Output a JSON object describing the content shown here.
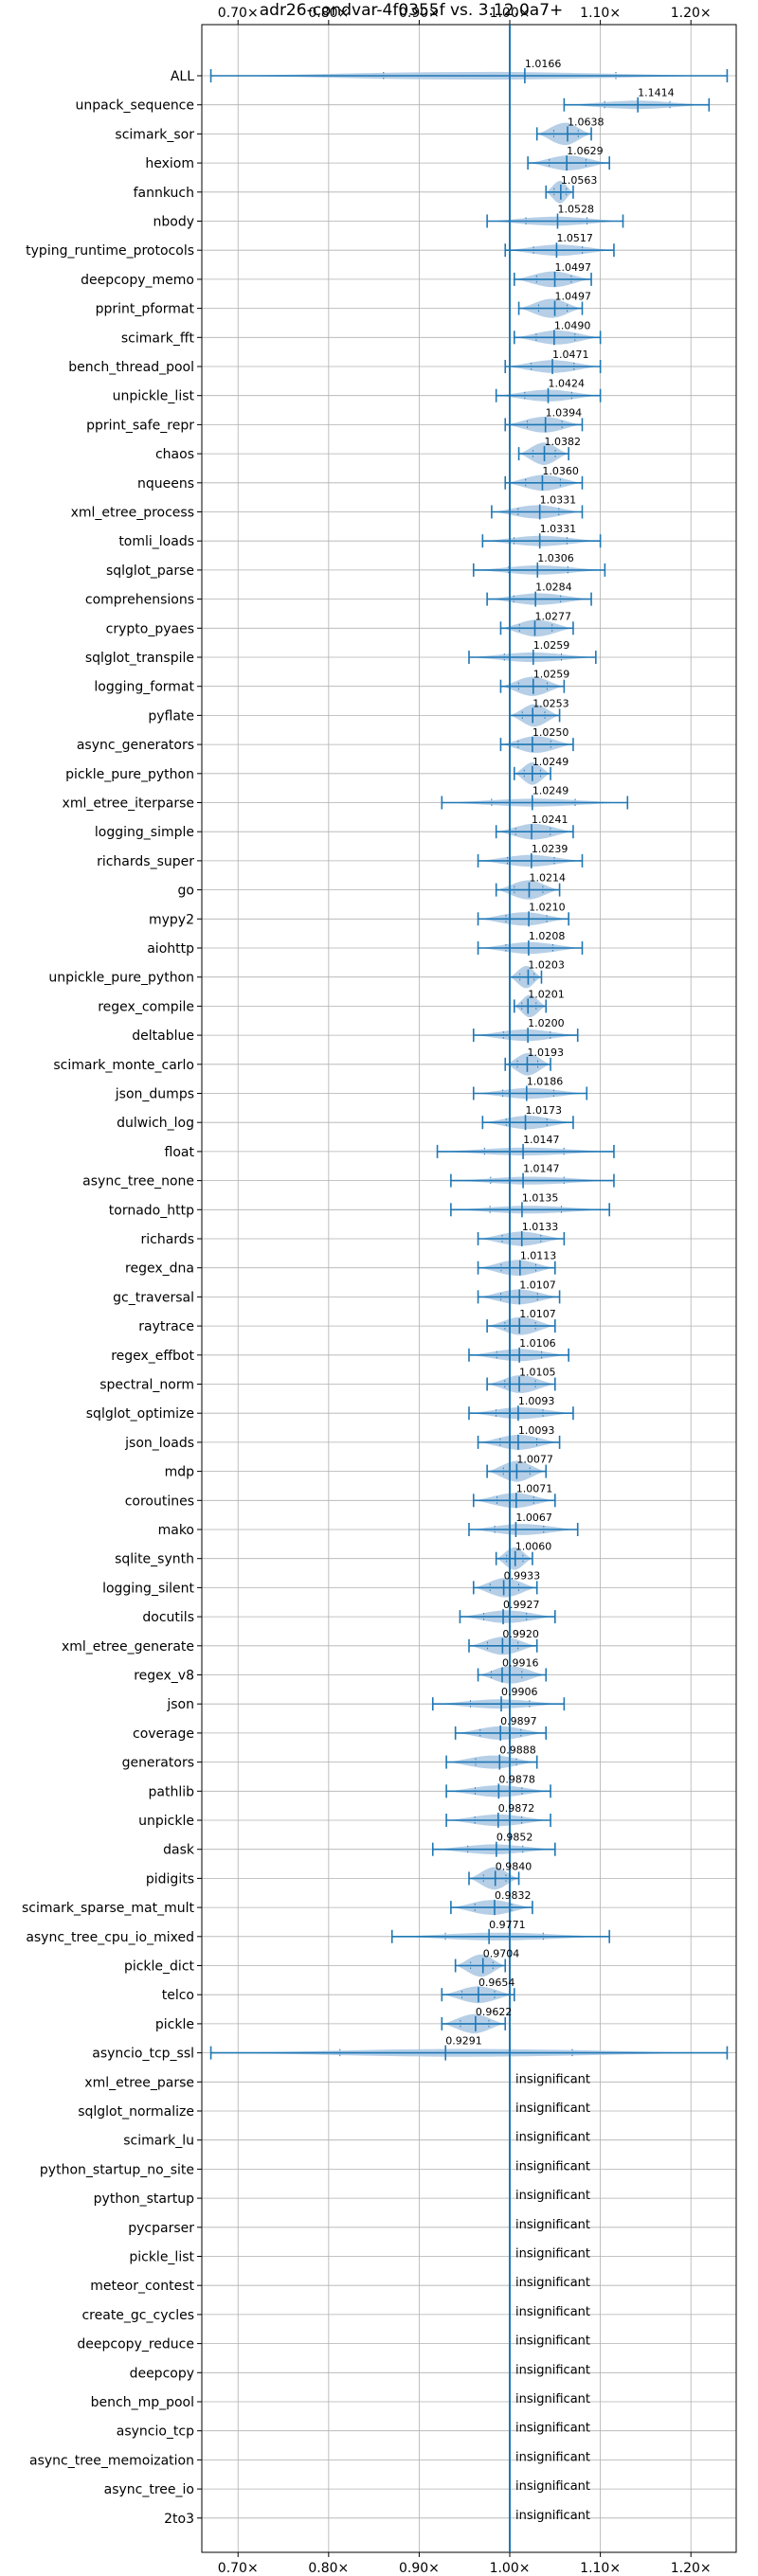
{
  "chart_data": {
    "type": "violin",
    "title": "adr26-condvar-4f0355f vs. 3.12.0a7+",
    "xlabel": "",
    "ylabel": "",
    "xlim": [
      0.66,
      1.25
    ],
    "x_ticks": [
      0.7,
      0.8,
      0.9,
      1.0,
      1.1,
      1.2
    ],
    "x_tick_labels": [
      "0.70×",
      "0.80×",
      "0.90×",
      "1.00×",
      "1.10×",
      "1.20×"
    ],
    "reference_line": 1.0,
    "grid": true,
    "colors": {
      "violin": "#a9c7e3",
      "line": "#1f77b4",
      "grid": "#b0b0b0"
    },
    "insignificant_label": "insignificant",
    "benchmarks": [
      {
        "name": "ALL",
        "value": 1.0166,
        "label": "1.0166",
        "min": 0.67,
        "max": 1.24
      },
      {
        "name": "unpack_sequence",
        "value": 1.1414,
        "label": "1.1414",
        "min": 1.06,
        "max": 1.22
      },
      {
        "name": "scimark_sor",
        "value": 1.0638,
        "label": "1.0638",
        "min": 1.03,
        "max": 1.09
      },
      {
        "name": "hexiom",
        "value": 1.0629,
        "label": "1.0629",
        "min": 1.02,
        "max": 1.11
      },
      {
        "name": "fannkuch",
        "value": 1.0563,
        "label": "1.0563",
        "min": 1.04,
        "max": 1.07
      },
      {
        "name": "nbody",
        "value": 1.0528,
        "label": "1.0528",
        "min": 0.975,
        "max": 1.125
      },
      {
        "name": "typing_runtime_protocols",
        "value": 1.0517,
        "label": "1.0517",
        "min": 0.995,
        "max": 1.115
      },
      {
        "name": "deepcopy_memo",
        "value": 1.0497,
        "label": "1.0497",
        "min": 1.005,
        "max": 1.09
      },
      {
        "name": "pprint_pformat",
        "value": 1.0497,
        "label": "1.0497",
        "min": 1.01,
        "max": 1.08
      },
      {
        "name": "scimark_fft",
        "value": 1.049,
        "label": "1.0490",
        "min": 1.005,
        "max": 1.1
      },
      {
        "name": "bench_thread_pool",
        "value": 1.0471,
        "label": "1.0471",
        "min": 0.995,
        "max": 1.1
      },
      {
        "name": "unpickle_list",
        "value": 1.0424,
        "label": "1.0424",
        "min": 0.985,
        "max": 1.1
      },
      {
        "name": "pprint_safe_repr",
        "value": 1.0394,
        "label": "1.0394",
        "min": 0.995,
        "max": 1.08
      },
      {
        "name": "chaos",
        "value": 1.0382,
        "label": "1.0382",
        "min": 1.01,
        "max": 1.065
      },
      {
        "name": "nqueens",
        "value": 1.036,
        "label": "1.0360",
        "min": 0.995,
        "max": 1.08
      },
      {
        "name": "xml_etree_process",
        "value": 1.0331,
        "label": "1.0331",
        "min": 0.98,
        "max": 1.08
      },
      {
        "name": "tomli_loads",
        "value": 1.0331,
        "label": "1.0331",
        "min": 0.97,
        "max": 1.1
      },
      {
        "name": "sqlglot_parse",
        "value": 1.0306,
        "label": "1.0306",
        "min": 0.96,
        "max": 1.105
      },
      {
        "name": "comprehensions",
        "value": 1.0284,
        "label": "1.0284",
        "min": 0.975,
        "max": 1.09
      },
      {
        "name": "crypto_pyaes",
        "value": 1.0277,
        "label": "1.0277",
        "min": 0.99,
        "max": 1.07
      },
      {
        "name": "sqlglot_transpile",
        "value": 1.0259,
        "label": "1.0259",
        "min": 0.955,
        "max": 1.095
      },
      {
        "name": "logging_format",
        "value": 1.0259,
        "label": "1.0259",
        "min": 0.99,
        "max": 1.06
      },
      {
        "name": "pyflate",
        "value": 1.0253,
        "label": "1.0253",
        "min": 1.0,
        "max": 1.055
      },
      {
        "name": "async_generators",
        "value": 1.025,
        "label": "1.0250",
        "min": 0.99,
        "max": 1.07
      },
      {
        "name": "pickle_pure_python",
        "value": 1.0249,
        "label": "1.0249",
        "min": 1.005,
        "max": 1.045
      },
      {
        "name": "xml_etree_iterparse",
        "value": 1.0249,
        "label": "1.0249",
        "min": 0.925,
        "max": 1.13
      },
      {
        "name": "logging_simple",
        "value": 1.0241,
        "label": "1.0241",
        "min": 0.985,
        "max": 1.07
      },
      {
        "name": "richards_super",
        "value": 1.0239,
        "label": "1.0239",
        "min": 0.965,
        "max": 1.08
      },
      {
        "name": "go",
        "value": 1.0214,
        "label": "1.0214",
        "min": 0.985,
        "max": 1.055
      },
      {
        "name": "mypy2",
        "value": 1.021,
        "label": "1.0210",
        "min": 0.965,
        "max": 1.065
      },
      {
        "name": "aiohttp",
        "value": 1.0208,
        "label": "1.0208",
        "min": 0.965,
        "max": 1.08
      },
      {
        "name": "unpickle_pure_python",
        "value": 1.0203,
        "label": "1.0203",
        "min": 1.0,
        "max": 1.035
      },
      {
        "name": "regex_compile",
        "value": 1.0201,
        "label": "1.0201",
        "min": 1.005,
        "max": 1.04
      },
      {
        "name": "deltablue",
        "value": 1.02,
        "label": "1.0200",
        "min": 0.96,
        "max": 1.075
      },
      {
        "name": "scimark_monte_carlo",
        "value": 1.0193,
        "label": "1.0193",
        "min": 0.995,
        "max": 1.045
      },
      {
        "name": "json_dumps",
        "value": 1.0186,
        "label": "1.0186",
        "min": 0.96,
        "max": 1.085
      },
      {
        "name": "dulwich_log",
        "value": 1.0173,
        "label": "1.0173",
        "min": 0.97,
        "max": 1.07
      },
      {
        "name": "float",
        "value": 1.0147,
        "label": "1.0147",
        "min": 0.92,
        "max": 1.115
      },
      {
        "name": "async_tree_none",
        "value": 1.0147,
        "label": "1.0147",
        "min": 0.935,
        "max": 1.115
      },
      {
        "name": "tornado_http",
        "value": 1.0135,
        "label": "1.0135",
        "min": 0.935,
        "max": 1.11
      },
      {
        "name": "richards",
        "value": 1.0133,
        "label": "1.0133",
        "min": 0.965,
        "max": 1.06
      },
      {
        "name": "regex_dna",
        "value": 1.0113,
        "label": "1.0113",
        "min": 0.965,
        "max": 1.05
      },
      {
        "name": "gc_traversal",
        "value": 1.0107,
        "label": "1.0107",
        "min": 0.965,
        "max": 1.055
      },
      {
        "name": "raytrace",
        "value": 1.0107,
        "label": "1.0107",
        "min": 0.975,
        "max": 1.05
      },
      {
        "name": "regex_effbot",
        "value": 1.0106,
        "label": "1.0106",
        "min": 0.955,
        "max": 1.065
      },
      {
        "name": "spectral_norm",
        "value": 1.0105,
        "label": "1.0105",
        "min": 0.975,
        "max": 1.05
      },
      {
        "name": "sqlglot_optimize",
        "value": 1.0093,
        "label": "1.0093",
        "min": 0.955,
        "max": 1.07
      },
      {
        "name": "json_loads",
        "value": 1.0093,
        "label": "1.0093",
        "min": 0.965,
        "max": 1.055
      },
      {
        "name": "mdp",
        "value": 1.0077,
        "label": "1.0077",
        "min": 0.975,
        "max": 1.04
      },
      {
        "name": "coroutines",
        "value": 1.0071,
        "label": "1.0071",
        "min": 0.96,
        "max": 1.05
      },
      {
        "name": "mako",
        "value": 1.0067,
        "label": "1.0067",
        "min": 0.955,
        "max": 1.075
      },
      {
        "name": "sqlite_synth",
        "value": 1.006,
        "label": "1.0060",
        "min": 0.985,
        "max": 1.025
      },
      {
        "name": "logging_silent",
        "value": 0.9933,
        "label": "0.9933",
        "min": 0.96,
        "max": 1.03
      },
      {
        "name": "docutils",
        "value": 0.9927,
        "label": "0.9927",
        "min": 0.945,
        "max": 1.05
      },
      {
        "name": "xml_etree_generate",
        "value": 0.992,
        "label": "0.9920",
        "min": 0.955,
        "max": 1.03
      },
      {
        "name": "regex_v8",
        "value": 0.9916,
        "label": "0.9916",
        "min": 0.965,
        "max": 1.04
      },
      {
        "name": "json",
        "value": 0.9906,
        "label": "0.9906",
        "min": 0.915,
        "max": 1.06
      },
      {
        "name": "coverage",
        "value": 0.9897,
        "label": "0.9897",
        "min": 0.94,
        "max": 1.04
      },
      {
        "name": "generators",
        "value": 0.9888,
        "label": "0.9888",
        "min": 0.93,
        "max": 1.03
      },
      {
        "name": "pathlib",
        "value": 0.9878,
        "label": "0.9878",
        "min": 0.93,
        "max": 1.045
      },
      {
        "name": "unpickle",
        "value": 0.9872,
        "label": "0.9872",
        "min": 0.93,
        "max": 1.045
      },
      {
        "name": "dask",
        "value": 0.9852,
        "label": "0.9852",
        "min": 0.915,
        "max": 1.05
      },
      {
        "name": "pidigits",
        "value": 0.984,
        "label": "0.9840",
        "min": 0.955,
        "max": 1.01
      },
      {
        "name": "scimark_sparse_mat_mult",
        "value": 0.9832,
        "label": "0.9832",
        "min": 0.935,
        "max": 1.025
      },
      {
        "name": "async_tree_cpu_io_mixed",
        "value": 0.9771,
        "label": "0.9771",
        "min": 0.87,
        "max": 1.11
      },
      {
        "name": "pickle_dict",
        "value": 0.9704,
        "label": "0.9704",
        "min": 0.94,
        "max": 0.995
      },
      {
        "name": "telco",
        "value": 0.9654,
        "label": "0.9654",
        "min": 0.925,
        "max": 1.005
      },
      {
        "name": "pickle",
        "value": 0.9622,
        "label": "0.9622",
        "min": 0.925,
        "max": 0.995
      },
      {
        "name": "asyncio_tcp_ssl",
        "value": 0.9291,
        "label": "0.9291",
        "min": 0.67,
        "max": 1.24
      },
      {
        "name": "xml_etree_parse",
        "insignificant": true
      },
      {
        "name": "sqlglot_normalize",
        "insignificant": true
      },
      {
        "name": "scimark_lu",
        "insignificant": true
      },
      {
        "name": "python_startup_no_site",
        "insignificant": true
      },
      {
        "name": "python_startup",
        "insignificant": true
      },
      {
        "name": "pycparser",
        "insignificant": true
      },
      {
        "name": "pickle_list",
        "insignificant": true
      },
      {
        "name": "meteor_contest",
        "insignificant": true
      },
      {
        "name": "create_gc_cycles",
        "insignificant": true
      },
      {
        "name": "deepcopy_reduce",
        "insignificant": true
      },
      {
        "name": "deepcopy",
        "insignificant": true
      },
      {
        "name": "bench_mp_pool",
        "insignificant": true
      },
      {
        "name": "asyncio_tcp",
        "insignificant": true
      },
      {
        "name": "async_tree_memoization",
        "insignificant": true
      },
      {
        "name": "async_tree_io",
        "insignificant": true
      },
      {
        "name": "2to3",
        "insignificant": true
      }
    ]
  }
}
